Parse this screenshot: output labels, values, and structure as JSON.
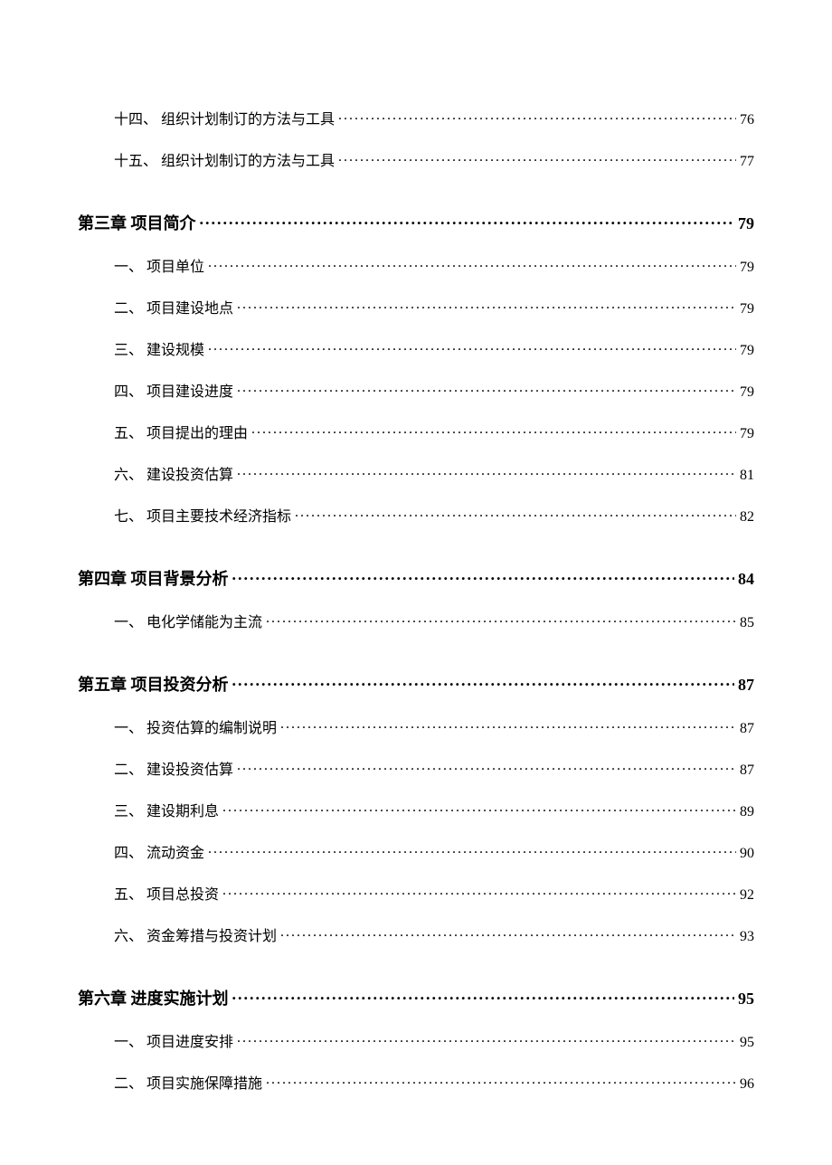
{
  "initial_items": [
    {
      "label": "十四、 组织计划制订的方法与工具",
      "page": "76"
    },
    {
      "label": "十五、 组织计划制订的方法与工具",
      "page": "77"
    }
  ],
  "chapters": [
    {
      "title": "第三章 项目简介",
      "page": "79",
      "items": [
        {
          "label": "一、 项目单位",
          "page": "79"
        },
        {
          "label": "二、 项目建设地点",
          "page": "79"
        },
        {
          "label": "三、 建设规模",
          "page": "79"
        },
        {
          "label": "四、 项目建设进度",
          "page": "79"
        },
        {
          "label": "五、 项目提出的理由",
          "page": "79"
        },
        {
          "label": "六、 建设投资估算",
          "page": "81"
        },
        {
          "label": "七、 项目主要技术经济指标",
          "page": "82"
        }
      ]
    },
    {
      "title": "第四章 项目背景分析",
      "page": "84",
      "items": [
        {
          "label": "一、 电化学储能为主流",
          "page": "85"
        }
      ]
    },
    {
      "title": "第五章 项目投资分析",
      "page": "87",
      "items": [
        {
          "label": "一、 投资估算的编制说明",
          "page": "87"
        },
        {
          "label": "二、 建设投资估算",
          "page": "87"
        },
        {
          "label": "三、 建设期利息",
          "page": "89"
        },
        {
          "label": "四、 流动资金",
          "page": "90"
        },
        {
          "label": "五、 项目总投资",
          "page": "92"
        },
        {
          "label": "六、 资金筹措与投资计划",
          "page": "93"
        }
      ]
    },
    {
      "title": "第六章 进度实施计划",
      "page": "95",
      "items": [
        {
          "label": "一、 项目进度安排",
          "page": "95"
        },
        {
          "label": "二、 项目实施保障措施",
          "page": "96"
        }
      ]
    }
  ]
}
